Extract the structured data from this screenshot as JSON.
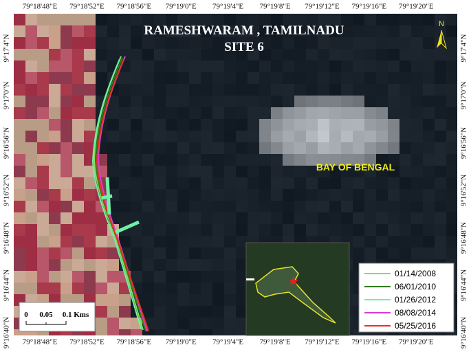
{
  "title": [
    "RAMESHWARAM , TAMILNADU",
    "SITE 6"
  ],
  "north": "N",
  "sea_label": "BAY OF BENGAL",
  "longitudes": [
    "79°18'48\"E",
    "79°18'52\"E",
    "79°18'56\"E",
    "79°19'0\"E",
    "79°19'4\"E",
    "79°19'8\"E",
    "79°19'12\"E",
    "79°19'16\"E",
    "79°19'20\"E"
  ],
  "latitudes": [
    "9°17'4\"N",
    "9°17'0\"N",
    "9°16'56\"N",
    "9°16'52\"N",
    "9°16'48\"N",
    "9°16'44\"N",
    "9°16'40\"N"
  ],
  "legend": [
    {
      "name": "01/14/2008",
      "color": "#7de35a"
    },
    {
      "name": "06/01/2010",
      "color": "#2e7d1e"
    },
    {
      "name": "01/26/2012",
      "color": "#6ff0a8"
    },
    {
      "name": "08/08/2014",
      "color": "#d63fd0"
    },
    {
      "name": "05/25/2016",
      "color": "#e8301e"
    }
  ],
  "scale_bar": [
    "0",
    "0.05",
    "0.1 Kms"
  ]
}
